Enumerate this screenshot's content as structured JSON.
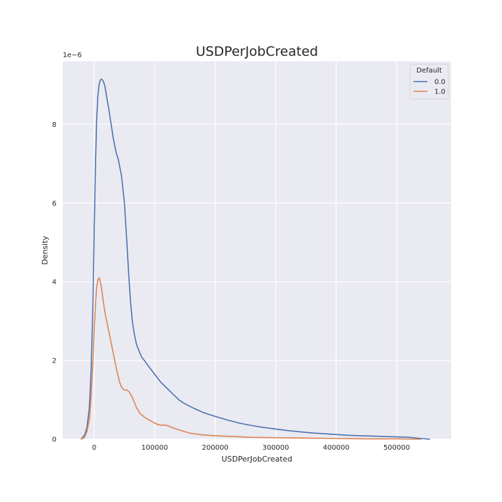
{
  "chart_data": {
    "type": "line",
    "title": "USDPerJobCreated",
    "xlabel": "USDPerJobCreated",
    "ylabel": "Density",
    "y_scale_label": "1e−6",
    "y_scale": 1e-06,
    "xlim": [
      -52000,
      590000
    ],
    "ylim": [
      0,
      9.6
    ],
    "x_ticks": [
      0,
      100000,
      200000,
      300000,
      400000,
      500000
    ],
    "y_ticks": [
      0,
      2,
      4,
      6,
      8
    ],
    "grid": true,
    "legend": {
      "title": "Default",
      "position": "top-right"
    },
    "series": [
      {
        "name": "0.0",
        "color": "#4c72b0",
        "x": [
          -22000,
          -16000,
          -12000,
          -8000,
          -5000,
          -2000,
          0,
          2000,
          4000,
          6000,
          8000,
          10000,
          12000,
          15000,
          18000,
          20000,
          24000,
          28000,
          32000,
          36000,
          40000,
          45000,
          50000,
          54000,
          57000,
          60000,
          63000,
          66000,
          70000,
          74000,
          78000,
          83000,
          90000,
          100000,
          110000,
          120000,
          130000,
          140000,
          150000,
          160000,
          170000,
          180000,
          200000,
          220000,
          240000,
          260000,
          280000,
          300000,
          320000,
          340000,
          360000,
          380000,
          400000,
          420000,
          440000,
          460000,
          480000,
          500000,
          520000,
          540000,
          555000
        ],
        "y": [
          0.0,
          0.1,
          0.3,
          0.8,
          1.8,
          3.5,
          5.3,
          6.9,
          8.1,
          8.7,
          9.0,
          9.12,
          9.15,
          9.1,
          8.95,
          8.75,
          8.4,
          8.0,
          7.6,
          7.3,
          7.1,
          6.7,
          6.0,
          5.0,
          4.2,
          3.5,
          3.0,
          2.7,
          2.4,
          2.25,
          2.1,
          2.0,
          1.85,
          1.65,
          1.45,
          1.3,
          1.15,
          1.0,
          0.9,
          0.82,
          0.75,
          0.68,
          0.58,
          0.49,
          0.41,
          0.35,
          0.3,
          0.26,
          0.22,
          0.19,
          0.16,
          0.14,
          0.12,
          0.1,
          0.09,
          0.08,
          0.07,
          0.06,
          0.05,
          0.02,
          0.0
        ]
      },
      {
        "name": "1.0",
        "color": "#dd8452",
        "x": [
          -22000,
          -16000,
          -12000,
          -8000,
          -5000,
          -2000,
          0,
          2000,
          4000,
          6000,
          8000,
          9000,
          10000,
          12000,
          15000,
          18000,
          22000,
          26000,
          30000,
          34000,
          38000,
          42000,
          46000,
          50000,
          54000,
          58000,
          62000,
          66000,
          70000,
          76000,
          84000,
          92000,
          100000,
          106000,
          110000,
          116000,
          120000,
          124000,
          130000,
          140000,
          150000,
          160000,
          180000,
          200000,
          230000,
          260000,
          300000,
          350000,
          400000,
          450000,
          500000,
          540000
        ],
        "y": [
          0.0,
          0.05,
          0.2,
          0.5,
          1.1,
          2.0,
          2.8,
          3.4,
          3.85,
          4.05,
          4.1,
          4.08,
          4.0,
          3.85,
          3.5,
          3.2,
          2.9,
          2.6,
          2.3,
          2.0,
          1.7,
          1.45,
          1.3,
          1.25,
          1.25,
          1.2,
          1.1,
          0.95,
          0.8,
          0.65,
          0.55,
          0.48,
          0.41,
          0.37,
          0.36,
          0.36,
          0.35,
          0.33,
          0.29,
          0.24,
          0.19,
          0.15,
          0.11,
          0.09,
          0.07,
          0.05,
          0.04,
          0.03,
          0.02,
          0.01,
          0.01,
          0.0
        ]
      }
    ]
  }
}
